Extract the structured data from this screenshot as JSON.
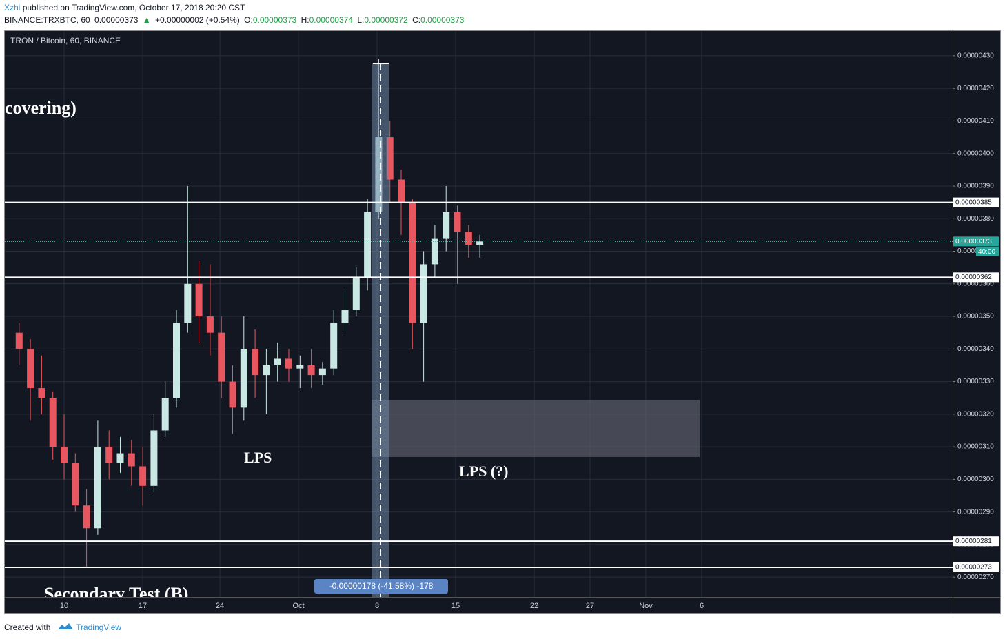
{
  "header": {
    "author": "Xzhi",
    "published": "published on TradingView.com, October 17, 2018 20:20 CST",
    "symbol": "BINANCE:TRXBTC, 60",
    "price": "0.00000373",
    "change": "+0.00000002 (+0.54%)",
    "o_label": "O:",
    "open": "0.00000373",
    "h_label": "H:",
    "high": "0.00000374",
    "l_label": "L:",
    "low": "0.00000372",
    "c_label": "C:",
    "close": "0.00000373"
  },
  "chart_data": {
    "type": "candlestick",
    "title": "TRON / Bitcoin, 60, BINANCE",
    "up_color": "#c9e8e4",
    "down_color": "#e8575f",
    "open": [
      3.45e-06,
      3.4e-06,
      3.28e-06,
      3.25e-06,
      3.1e-06,
      3.05e-06,
      2.92e-06,
      2.85e-06,
      3.1e-06,
      3.05e-06,
      3.08e-06,
      3.04e-06,
      2.98e-06,
      3.15e-06,
      3.25e-06,
      3.48e-06,
      3.6e-06,
      3.5e-06,
      3.45e-06,
      3.3e-06,
      3.22e-06,
      3.4e-06,
      3.32e-06,
      3.35e-06,
      3.37e-06,
      3.34e-06,
      3.35e-06,
      3.32e-06,
      3.34e-06,
      3.48e-06,
      3.52e-06,
      3.62e-06,
      3.82e-06,
      4.05e-06,
      3.92e-06,
      3.85e-06,
      3.48e-06,
      3.66e-06,
      3.74e-06,
      3.82e-06,
      3.76e-06,
      3.72e-06
    ],
    "high": [
      3.48e-06,
      3.43e-06,
      3.38e-06,
      3.27e-06,
      3.2e-06,
      3.08e-06,
      2.97e-06,
      3.18e-06,
      3.15e-06,
      3.13e-06,
      3.12e-06,
      3.1e-06,
      3.2e-06,
      3.3e-06,
      3.52e-06,
      3.9e-06,
      3.67e-06,
      3.66e-06,
      3.5e-06,
      3.35e-06,
      3.5e-06,
      3.46e-06,
      3.4e-06,
      3.42e-06,
      3.4e-06,
      3.38e-06,
      3.4e-06,
      3.36e-06,
      3.52e-06,
      3.58e-06,
      3.65e-06,
      3.86e-06,
      4.29e-06,
      4.1e-06,
      3.95e-06,
      3.86e-06,
      3.7e-06,
      3.78e-06,
      3.9e-06,
      3.84e-06,
      3.78e-06,
      3.75e-06
    ],
    "low": [
      3.35e-06,
      3.18e-06,
      3.2e-06,
      3.06e-06,
      3e-06,
      2.9e-06,
      2.73e-06,
      2.83e-06,
      3e-06,
      3.02e-06,
      2.98e-06,
      2.92e-06,
      2.96e-06,
      3.13e-06,
      3.22e-06,
      3.45e-06,
      3.42e-06,
      3.38e-06,
      3.25e-06,
      3.14e-06,
      3.18e-06,
      3.25e-06,
      3.2e-06,
      3.3e-06,
      3.3e-06,
      3.28e-06,
      3.28e-06,
      3.29e-06,
      3.32e-06,
      3.45e-06,
      3.5e-06,
      3.58e-06,
      3.8e-06,
      3.85e-06,
      3.75e-06,
      3.4e-06,
      3.3e-06,
      3.62e-06,
      3.7e-06,
      3.6e-06,
      3.68e-06,
      3.68e-06
    ],
    "close": [
      3.4e-06,
      3.28e-06,
      3.25e-06,
      3.1e-06,
      3.05e-06,
      2.92e-06,
      2.85e-06,
      3.1e-06,
      3.05e-06,
      3.08e-06,
      3.04e-06,
      2.98e-06,
      3.15e-06,
      3.25e-06,
      3.48e-06,
      3.6e-06,
      3.5e-06,
      3.45e-06,
      3.3e-06,
      3.22e-06,
      3.4e-06,
      3.32e-06,
      3.35e-06,
      3.37e-06,
      3.34e-06,
      3.35e-06,
      3.32e-06,
      3.34e-06,
      3.48e-06,
      3.52e-06,
      3.62e-06,
      3.82e-06,
      4.05e-06,
      3.92e-06,
      3.85e-06,
      3.48e-06,
      3.66e-06,
      3.74e-06,
      3.82e-06,
      3.76e-06,
      3.72e-06,
      3.73e-06
    ],
    "xticks": [
      "10",
      "17",
      "24",
      "Oct",
      "8",
      "15",
      "22",
      "27",
      "Nov",
      "6"
    ],
    "ylim": [
      2.639e-06,
      4.376e-06
    ],
    "yticks": [
      {
        "value": 2.7e-06,
        "label": "0.00000270"
      },
      {
        "value": 2.8e-06,
        "label": "0.00000280"
      },
      {
        "value": 2.9e-06,
        "label": "0.00000290"
      },
      {
        "value": 3e-06,
        "label": "0.00000300"
      },
      {
        "value": 3.1e-06,
        "label": "0.00000310"
      },
      {
        "value": 3.2e-06,
        "label": "0.00000320"
      },
      {
        "value": 3.3e-06,
        "label": "0.00000330"
      },
      {
        "value": 3.4e-06,
        "label": "0.00000340"
      },
      {
        "value": 3.5e-06,
        "label": "0.00000350"
      },
      {
        "value": 3.6e-06,
        "label": "0.00000360"
      },
      {
        "value": 3.7e-06,
        "label": "0.00000370"
      },
      {
        "value": 3.8e-06,
        "label": "0.00000380"
      },
      {
        "value": 3.9e-06,
        "label": "0.00000390"
      },
      {
        "value": 4e-06,
        "label": "0.00000400"
      },
      {
        "value": 4.1e-06,
        "label": "0.00000410"
      },
      {
        "value": 4.2e-06,
        "label": "0.00000420"
      },
      {
        "value": 4.3e-06,
        "label": "0.00000430"
      }
    ],
    "levels": [
      {
        "value": 3.85e-06,
        "label": "0.00000385"
      },
      {
        "value": 3.62e-06,
        "label": "0.00000362"
      },
      {
        "value": 2.81e-06,
        "label": "0.00000281"
      },
      {
        "value": 2.73e-06,
        "label": "0.00000273"
      }
    ],
    "last_price": {
      "value": 3.73e-06,
      "label": "0.00000373"
    },
    "countdown": "40:00",
    "annotations": [
      "covering)",
      "LPS",
      "LPS (?)",
      "Secondary Test (B)"
    ],
    "measure_label": "-0.00000178 (-41.58%) -178",
    "grid": true
  },
  "footer": {
    "created": "Created with",
    "brand": "TradingView"
  }
}
